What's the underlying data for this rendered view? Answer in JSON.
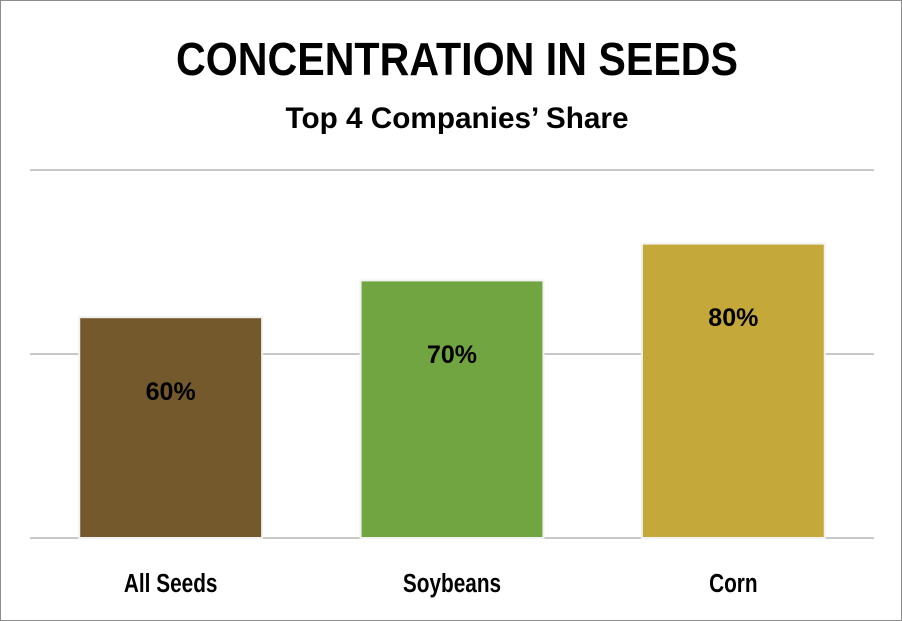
{
  "chart_data": {
    "type": "bar",
    "title": "CONCENTRATION IN SEEDS",
    "subtitle": "Top 4 Companies’ Share",
    "categories": [
      "All Seeds",
      "Soybeans",
      "Corn"
    ],
    "values": [
      60,
      70,
      80
    ],
    "value_labels": [
      "60%",
      "70%",
      "80%"
    ],
    "colors": [
      "#73592b",
      "#70a542",
      "#c4a83a"
    ],
    "ylim": [
      0,
      100
    ],
    "yticks": [
      0,
      50,
      100
    ],
    "grid": true
  }
}
